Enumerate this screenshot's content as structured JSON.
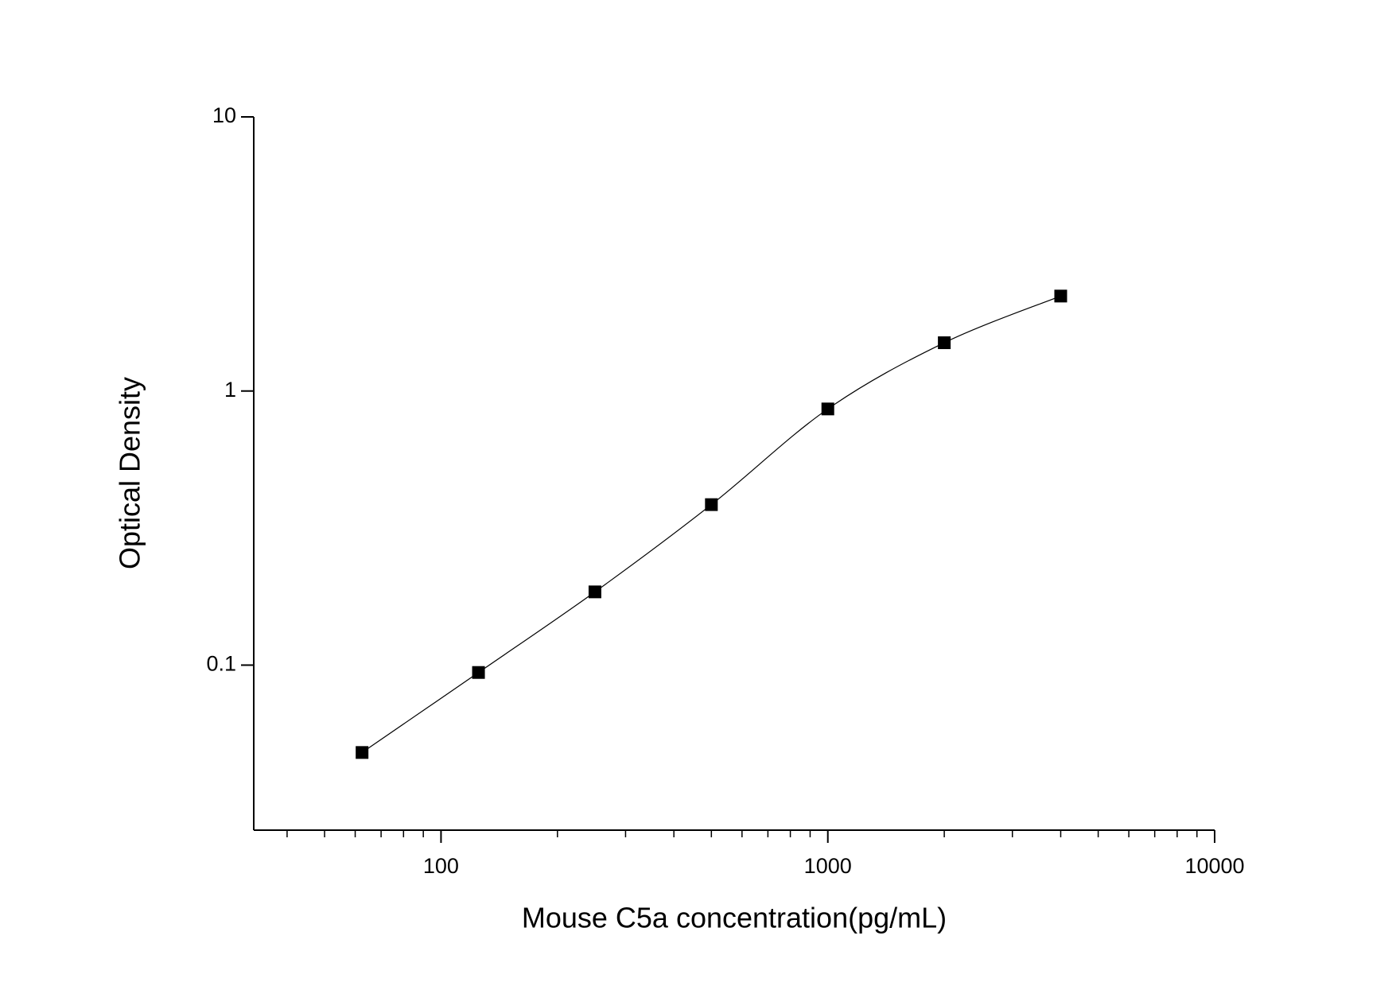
{
  "chart_data": {
    "type": "scatter",
    "x_label": "Mouse C5a concentration(pg/mL)",
    "y_label": "Optical Density",
    "x": [
      62.5,
      125,
      250,
      500,
      1000,
      2000,
      4000
    ],
    "series": [
      {
        "values": [
          0.048,
          0.094,
          0.185,
          0.385,
          0.86,
          1.5,
          2.22
        ],
        "color": "#000000"
      }
    ],
    "fit_curve": true,
    "xscale": "log",
    "yscale": "log",
    "xlim": [
      32.8,
      10000
    ],
    "ylim": [
      0.025,
      10
    ],
    "xticks": [
      100,
      1000,
      10000
    ],
    "yticks": [
      {
        "value": 0.1,
        "label": "0.1"
      },
      1,
      10
    ],
    "minor_ticks": true,
    "grid": false
  }
}
